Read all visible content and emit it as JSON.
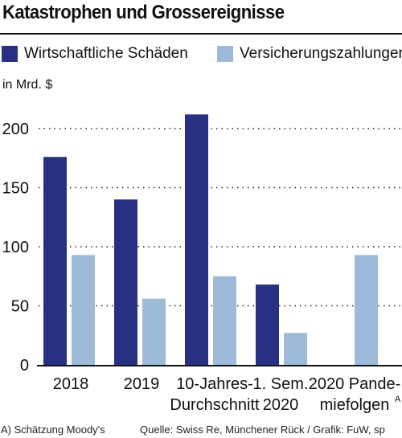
{
  "header": {
    "title": "Katastrophen und Grossereignisse"
  },
  "legend": {
    "items": [
      {
        "label": "Wirtschaftliche Schäden",
        "color": "#283084"
      },
      {
        "label": "Versicherungszahlungen",
        "color": "#9dbad8"
      }
    ]
  },
  "footer": {
    "note": "A) Schätzung Moody's",
    "source": "Quelle: Swiss Re, Münchener Rück / Grafik: FuW, sp"
  },
  "chart_data": {
    "type": "bar",
    "title": "Katastrophen und Grossereignisse",
    "unit_label": "in Mrd. $",
    "categories": [
      [
        "2018"
      ],
      [
        "2019"
      ],
      [
        "10-Jahres-",
        "Durchschnitt"
      ],
      [
        "1. Sem.",
        "2020"
      ],
      [
        "2020 Pande-",
        "miefolgen"
      ]
    ],
    "category_superscripts": [
      "",
      "",
      "",
      "",
      "A"
    ],
    "series": [
      {
        "name": "Wirtschaftliche Schäden",
        "color": "#283084",
        "values": [
          176,
          140,
          212,
          68,
          null
        ]
      },
      {
        "name": "Versicherungszahlungen",
        "color": "#9dbad8",
        "values": [
          93,
          56,
          75,
          27,
          93
        ]
      }
    ],
    "yticks": [
      0,
      50,
      100,
      150,
      200
    ],
    "ylim": [
      0,
      215
    ],
    "grid": "dotted horizontal",
    "legend_position": "top"
  }
}
